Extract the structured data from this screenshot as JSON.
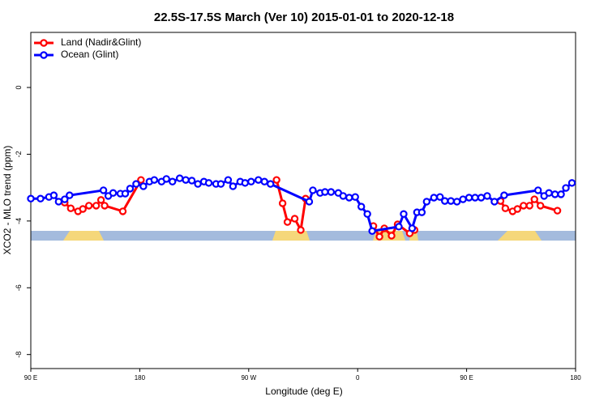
{
  "chart_data": {
    "type": "line",
    "title": "22.5S-17.5S March (Ver 10)   2015-01-01 to 2020-12-18",
    "x_label": "Longitude (deg E)",
    "y_label": "XCO2 - MLO trend (ppm)",
    "xlim": [
      90,
      540
    ],
    "ylim": [
      -8.42,
      1.65
    ],
    "xticks": [
      {
        "value": 90,
        "label": "90 E"
      },
      {
        "value": 180,
        "label": "180"
      },
      {
        "value": 270,
        "label": "90 W"
      },
      {
        "value": 360,
        "label": "0"
      },
      {
        "value": 450,
        "label": "90 E"
      },
      {
        "value": 540,
        "label": "180"
      }
    ],
    "yticks": [
      0,
      -2,
      -4,
      -6,
      -8
    ],
    "legend": "top-left",
    "series": [
      {
        "name": "Land (Nadir&Glint)",
        "color": "#ff0000",
        "x": [
          118,
          123,
          129,
          133,
          138,
          144,
          148,
          151,
          166,
          181,
          null,
          293,
          298,
          302,
          308,
          313,
          317,
          null,
          373,
          378,
          382,
          388,
          393,
          403,
          407,
          null,
          478,
          482,
          488,
          492,
          497,
          502,
          506,
          511,
          525
        ],
        "values": [
          -3.45,
          -3.62,
          -3.71,
          -3.64,
          -3.54,
          -3.54,
          -3.37,
          -3.54,
          -3.71,
          -2.77,
          null,
          -2.77,
          -3.47,
          -4.03,
          -3.93,
          -4.27,
          -3.33,
          null,
          -4.15,
          -4.47,
          -4.22,
          -4.44,
          -4.1,
          -4.37,
          -4.27,
          null,
          -3.4,
          -3.62,
          -3.71,
          -3.64,
          -3.54,
          -3.54,
          -3.35,
          -3.54,
          -3.69
        ]
      },
      {
        "name": "Ocean (Glint)",
        "color": "#0000ff",
        "x": [
          90,
          98,
          105,
          109,
          113,
          118,
          122,
          150,
          154,
          158,
          164,
          168,
          172,
          177,
          183,
          188,
          192,
          198,
          202,
          207,
          213,
          218,
          223,
          228,
          233,
          237,
          243,
          247,
          253,
          257,
          263,
          267,
          272,
          278,
          283,
          288,
          320,
          323,
          329,
          333,
          338,
          344,
          348,
          353,
          358,
          363,
          368,
          372,
          394,
          398,
          405,
          409,
          413,
          417,
          423,
          428,
          432,
          437,
          442,
          447,
          452,
          457,
          462,
          467,
          473,
          481,
          509,
          514,
          518,
          523,
          528,
          532,
          537
        ],
        "values": [
          -3.33,
          -3.33,
          -3.28,
          -3.23,
          -3.42,
          -3.35,
          -3.23,
          -3.08,
          -3.25,
          -3.16,
          -3.18,
          -3.18,
          -3.03,
          -2.89,
          -2.96,
          -2.82,
          -2.77,
          -2.82,
          -2.74,
          -2.82,
          -2.72,
          -2.77,
          -2.79,
          -2.89,
          -2.82,
          -2.86,
          -2.89,
          -2.89,
          -2.77,
          -2.96,
          -2.82,
          -2.86,
          -2.82,
          -2.77,
          -2.82,
          -2.89,
          -3.42,
          -3.08,
          -3.16,
          -3.13,
          -3.13,
          -3.16,
          -3.25,
          -3.3,
          -3.28,
          -3.57,
          -3.79,
          -4.3,
          -4.17,
          -3.79,
          -4.22,
          -3.74,
          -3.74,
          -3.42,
          -3.3,
          -3.28,
          -3.4,
          -3.4,
          -3.42,
          -3.35,
          -3.3,
          -3.3,
          -3.3,
          -3.25,
          -3.42,
          -3.23,
          -3.08,
          -3.25,
          -3.16,
          -3.2,
          -3.2,
          -3.01,
          -2.86
        ]
      }
    ]
  }
}
